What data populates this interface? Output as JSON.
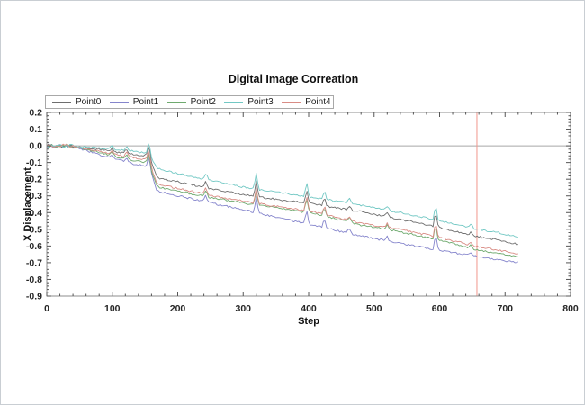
{
  "window": {
    "background": "#ffffff",
    "border_color": "#c9ced3"
  },
  "chart_data": {
    "type": "line",
    "title": "Digital Image Correation",
    "xlabel": "Step",
    "ylabel": "X Displacement",
    "xlim": [
      0,
      800
    ],
    "ylim": [
      -0.9,
      0.2
    ],
    "x_ticks": [
      0,
      100,
      200,
      300,
      400,
      500,
      600,
      700,
      800
    ],
    "x_minor_step": 20,
    "y_ticks": [
      0.2,
      0.1,
      0.0,
      -0.1,
      -0.2,
      -0.3,
      -0.4,
      -0.5,
      -0.6,
      -0.7,
      -0.8,
      -0.9
    ],
    "y_minor_step": 0.02,
    "grid": "off",
    "legend_position": "top-left",
    "zero_line": {
      "y": 0,
      "color": "#a8a8a8"
    },
    "marker_line": {
      "x": 657,
      "color": "#f2968c"
    },
    "frame_color": "#8c8c8c",
    "tick_color": "#555555",
    "noise_amplitude": 0.0055,
    "start_noise_amplitude": 0.011,
    "start_noise_until": 42,
    "sample_step": 2.5,
    "spikes": [
      [
        100,
        0.025
      ],
      [
        122,
        0.03
      ],
      [
        156,
        0.07
      ],
      [
        243,
        0.04
      ],
      [
        320,
        0.095
      ],
      [
        397,
        0.085
      ],
      [
        424,
        0.055
      ],
      [
        462,
        0.03
      ],
      [
        520,
        0.025
      ],
      [
        594,
        0.09
      ],
      [
        648,
        0.02
      ]
    ],
    "series": [
      {
        "name": "Point0",
        "color": "#6e6e6e",
        "keypoints": [
          [
            0,
            0
          ],
          [
            30,
            0
          ],
          [
            45,
            -0.005
          ],
          [
            70,
            -0.015
          ],
          [
            100,
            -0.035
          ],
          [
            130,
            -0.05
          ],
          [
            155,
            -0.06
          ],
          [
            160,
            -0.1
          ],
          [
            168,
            -0.19
          ],
          [
            200,
            -0.215
          ],
          [
            230,
            -0.24
          ],
          [
            260,
            -0.265
          ],
          [
            290,
            -0.285
          ],
          [
            320,
            -0.305
          ],
          [
            360,
            -0.325
          ],
          [
            400,
            -0.345
          ],
          [
            440,
            -0.37
          ],
          [
            480,
            -0.395
          ],
          [
            540,
            -0.44
          ],
          [
            600,
            -0.49
          ],
          [
            660,
            -0.545
          ],
          [
            690,
            -0.565
          ],
          [
            720,
            -0.59
          ]
        ]
      },
      {
        "name": "Point1",
        "color": "#8585cc",
        "keypoints": [
          [
            0,
            0
          ],
          [
            30,
            0
          ],
          [
            45,
            -0.01
          ],
          [
            70,
            -0.04
          ],
          [
            100,
            -0.075
          ],
          [
            130,
            -0.105
          ],
          [
            155,
            -0.125
          ],
          [
            160,
            -0.17
          ],
          [
            168,
            -0.27
          ],
          [
            200,
            -0.3
          ],
          [
            230,
            -0.325
          ],
          [
            260,
            -0.35
          ],
          [
            290,
            -0.375
          ],
          [
            320,
            -0.4
          ],
          [
            360,
            -0.435
          ],
          [
            400,
            -0.47
          ],
          [
            440,
            -0.505
          ],
          [
            480,
            -0.54
          ],
          [
            540,
            -0.585
          ],
          [
            600,
            -0.625
          ],
          [
            660,
            -0.665
          ],
          [
            690,
            -0.682
          ],
          [
            720,
            -0.7
          ]
        ]
      },
      {
        "name": "Point2",
        "color": "#6faa6f",
        "keypoints": [
          [
            0,
            0
          ],
          [
            30,
            0
          ],
          [
            45,
            -0.008
          ],
          [
            70,
            -0.03
          ],
          [
            100,
            -0.06
          ],
          [
            130,
            -0.085
          ],
          [
            155,
            -0.1
          ],
          [
            160,
            -0.15
          ],
          [
            168,
            -0.245
          ],
          [
            200,
            -0.27
          ],
          [
            230,
            -0.295
          ],
          [
            260,
            -0.315
          ],
          [
            290,
            -0.335
          ],
          [
            320,
            -0.355
          ],
          [
            360,
            -0.377
          ],
          [
            400,
            -0.4
          ],
          [
            440,
            -0.435
          ],
          [
            480,
            -0.475
          ],
          [
            540,
            -0.515
          ],
          [
            600,
            -0.565
          ],
          [
            660,
            -0.625
          ],
          [
            690,
            -0.645
          ],
          [
            720,
            -0.665
          ]
        ]
      },
      {
        "name": "Point3",
        "color": "#72c8c4",
        "keypoints": [
          [
            0,
            0
          ],
          [
            30,
            0
          ],
          [
            45,
            -0.003
          ],
          [
            70,
            -0.01
          ],
          [
            100,
            -0.02
          ],
          [
            130,
            -0.03
          ],
          [
            155,
            -0.045
          ],
          [
            160,
            -0.07
          ],
          [
            168,
            -0.135
          ],
          [
            200,
            -0.165
          ],
          [
            230,
            -0.19
          ],
          [
            260,
            -0.215
          ],
          [
            290,
            -0.24
          ],
          [
            320,
            -0.26
          ],
          [
            360,
            -0.283
          ],
          [
            400,
            -0.305
          ],
          [
            440,
            -0.33
          ],
          [
            480,
            -0.355
          ],
          [
            540,
            -0.4
          ],
          [
            600,
            -0.45
          ],
          [
            660,
            -0.5
          ],
          [
            690,
            -0.52
          ],
          [
            720,
            -0.545
          ]
        ]
      },
      {
        "name": "Point4",
        "color": "#d98c85",
        "keypoints": [
          [
            0,
            0
          ],
          [
            30,
            0
          ],
          [
            45,
            -0.007
          ],
          [
            70,
            -0.025
          ],
          [
            100,
            -0.05
          ],
          [
            130,
            -0.07
          ],
          [
            155,
            -0.085
          ],
          [
            160,
            -0.13
          ],
          [
            168,
            -0.23
          ],
          [
            200,
            -0.255
          ],
          [
            230,
            -0.28
          ],
          [
            260,
            -0.305
          ],
          [
            290,
            -0.325
          ],
          [
            320,
            -0.345
          ],
          [
            360,
            -0.367
          ],
          [
            400,
            -0.39
          ],
          [
            440,
            -0.425
          ],
          [
            480,
            -0.465
          ],
          [
            540,
            -0.5
          ],
          [
            600,
            -0.55
          ],
          [
            660,
            -0.605
          ],
          [
            690,
            -0.625
          ],
          [
            720,
            -0.645
          ]
        ]
      }
    ]
  }
}
